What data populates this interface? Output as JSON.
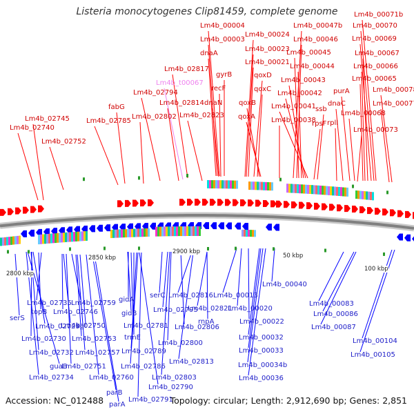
{
  "title": "Listeria monocytogenes Clip81459, complete genome",
  "footer": {
    "accession": "Accession: NC_012488",
    "summary": "Topology: circular; Length: 2,912,690 bp; Genes: 2,851"
  },
  "colors": {
    "forward_gene": "#ff0000",
    "reverse_gene": "#0000ff",
    "backbone": "#808080",
    "top_label": "#d00000",
    "top_label_trna": "#ee82ee",
    "bottom_label": "#1c1cc8"
  },
  "scale_labels": [
    "2800 kbp",
    "2850 kbp",
    "2900 kbp",
    "50 kbp",
    "100 kbp"
  ],
  "top_labels": [
    "Lm4b_00004",
    "Lm4b_00003",
    "dnaA",
    "gyrB",
    "recF",
    "dnaN",
    "Lm4b_02817",
    "Lm4b_t00067",
    "Lm4b_02794",
    "Lm4b_02814",
    "Lm4b_02823",
    "fabG",
    "Lm4b_02785",
    "Lm4b_02802",
    "Lm4b_02745",
    "Lm4b_02740",
    "Lm4b_02752",
    "Lm4b_00024",
    "Lm4b_00023",
    "Lm4b_00021",
    "qoxD",
    "qoxC",
    "qoxB",
    "qoxA",
    "Lm4b_00047b",
    "Lm4b_00046",
    "Lm4b_00045",
    "Lm4b_00044",
    "Lm4b_00043",
    "Lm4b_00042",
    "Lm4b_00041",
    "Lm4b_00038",
    "ssb",
    "rpsF",
    "Lm4b_00071b",
    "Lm4b_00070",
    "Lm4b_00069",
    "Lm4b_00067",
    "Lm4b_00066",
    "Lm4b_00065",
    "purA",
    "Lm4b_00078",
    "dnaC",
    "Lm4b_00068",
    "Lm4b_00077",
    "rplI",
    "Lm4b_00073"
  ],
  "bottom_labels": [
    "serS",
    "Lm4b_02735",
    "topB",
    "Lm4b_02729",
    "Lm4b_02730",
    "Lm4b_02732",
    "guaB",
    "Lm4b_02734",
    "Lm4b_02759",
    "Lm4b_02746",
    "kat",
    "Lm4b_02750",
    "Lm4b_02753",
    "Lm4b_02751",
    "Lm4b_02757",
    "Lm4b_02760",
    "parB",
    "parA",
    "gidA",
    "gidB",
    "Lm4b_02781",
    "trmE",
    "Lm4b_02789",
    "Lm4b_02786",
    "Lm4b_02790",
    "Lm4b_02791",
    "serC",
    "Lm4b_02795",
    "Lm4b_02806",
    "Lm4b_02800",
    "Lm4b_02803",
    "Lm4b_02816",
    "Lm4b_02821",
    "rnpA",
    "Lm4b_02813",
    "Lm4b_00013",
    "Lm4b_00020",
    "Lm4b_00022",
    "Lm4b_00032",
    "Lm4b_00033",
    "Lm4b_00034b",
    "Lm4b_00036",
    "Lm4b_00040",
    "Lm4b_00083",
    "Lm4b_00086",
    "Lm4b_00087",
    "Lm4b_00104",
    "Lm4b_00105"
  ]
}
